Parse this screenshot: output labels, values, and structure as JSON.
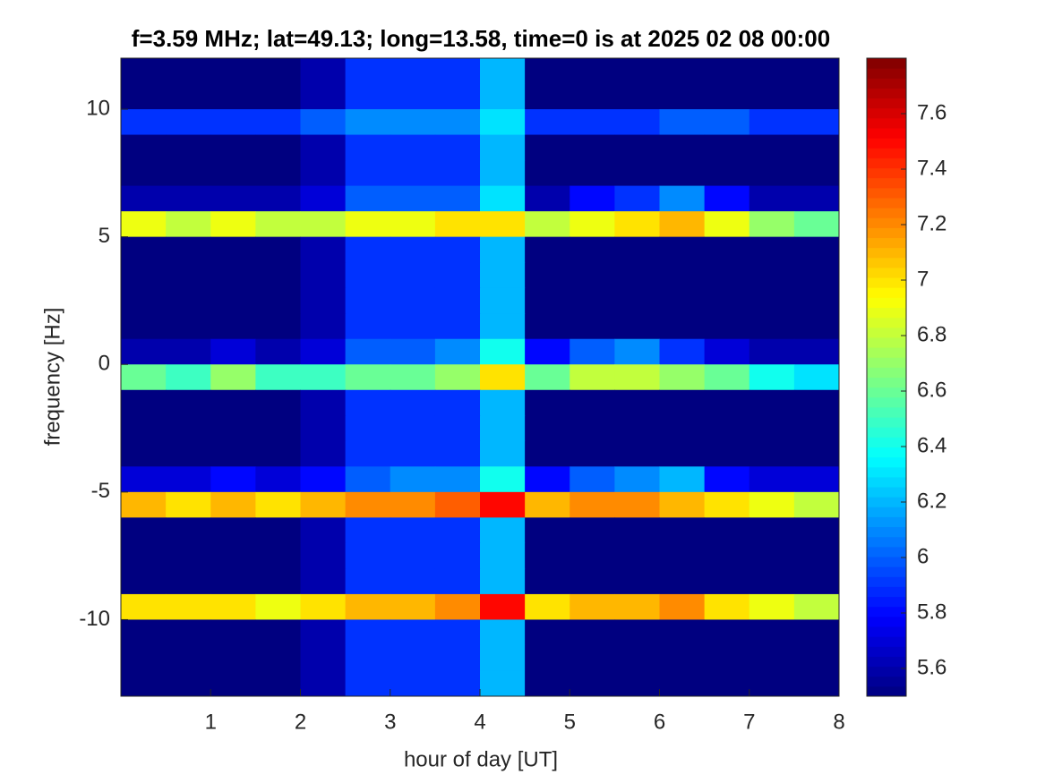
{
  "chart_data": {
    "type": "heatmap",
    "title": "f=3.59 MHz;  lat=49.13; long=13.58, time=0 is at 2025 02 08 00:00",
    "xlabel": "hour of day [UT]",
    "ylabel": "frequency [Hz]",
    "colormap": "jet",
    "x": [
      0.25,
      0.75,
      1.25,
      1.75,
      2.25,
      2.75,
      3.25,
      3.75,
      4.25,
      4.75,
      5.25,
      5.75,
      6.25,
      6.75,
      7.25,
      7.75
    ],
    "y": [
      11.5,
      10.5,
      9.5,
      8.5,
      7.5,
      6.5,
      5.5,
      4.5,
      3.5,
      2.5,
      1.5,
      0.5,
      -0.5,
      -1.5,
      -2.5,
      -3.5,
      -4.5,
      -5.5,
      -6.5,
      -7.5,
      -8.5,
      -9.5,
      -10.5,
      -11.5,
      -12.5
    ],
    "z": [
      [
        5.5,
        5.5,
        5.5,
        5.5,
        5.6,
        5.9,
        5.9,
        5.9,
        6.2,
        5.5,
        5.5,
        5.5,
        5.5,
        5.5,
        5.5,
        5.5
      ],
      [
        5.5,
        5.5,
        5.5,
        5.5,
        5.6,
        5.9,
        5.9,
        5.9,
        6.2,
        5.5,
        5.5,
        5.5,
        5.5,
        5.5,
        5.5,
        5.5
      ],
      [
        5.9,
        5.9,
        5.9,
        5.9,
        6.0,
        6.1,
        6.1,
        6.1,
        6.3,
        5.9,
        5.9,
        5.9,
        6.0,
        6.0,
        5.9,
        5.9
      ],
      [
        5.5,
        5.5,
        5.5,
        5.5,
        5.6,
        5.9,
        5.9,
        5.9,
        6.2,
        5.5,
        5.5,
        5.5,
        5.5,
        5.5,
        5.5,
        5.5
      ],
      [
        5.5,
        5.5,
        5.5,
        5.5,
        5.6,
        5.9,
        5.9,
        5.9,
        6.2,
        5.5,
        5.5,
        5.5,
        5.5,
        5.5,
        5.5,
        5.5
      ],
      [
        5.6,
        5.6,
        5.6,
        5.6,
        5.7,
        6.0,
        6.0,
        6.0,
        6.3,
        5.6,
        5.8,
        5.9,
        6.1,
        5.8,
        5.6,
        5.6
      ],
      [
        6.9,
        6.8,
        6.9,
        6.8,
        6.8,
        6.9,
        6.9,
        7.0,
        7.0,
        6.8,
        6.9,
        7.0,
        7.1,
        6.9,
        6.7,
        6.6
      ],
      [
        5.5,
        5.5,
        5.5,
        5.5,
        5.6,
        5.9,
        5.9,
        5.9,
        6.2,
        5.5,
        5.5,
        5.5,
        5.5,
        5.5,
        5.5,
        5.5
      ],
      [
        5.5,
        5.5,
        5.5,
        5.5,
        5.6,
        5.9,
        5.9,
        5.9,
        6.2,
        5.5,
        5.5,
        5.5,
        5.5,
        5.5,
        5.5,
        5.5
      ],
      [
        5.5,
        5.5,
        5.5,
        5.5,
        5.6,
        5.9,
        5.9,
        5.9,
        6.2,
        5.5,
        5.5,
        5.5,
        5.5,
        5.5,
        5.5,
        5.5
      ],
      [
        5.5,
        5.5,
        5.5,
        5.5,
        5.6,
        5.9,
        5.9,
        5.9,
        6.2,
        5.5,
        5.5,
        5.5,
        5.5,
        5.5,
        5.5,
        5.5
      ],
      [
        5.6,
        5.6,
        5.7,
        5.6,
        5.7,
        6.0,
        6.0,
        6.1,
        6.4,
        5.8,
        6.0,
        6.1,
        5.9,
        5.7,
        5.6,
        5.6
      ],
      [
        6.6,
        6.5,
        6.7,
        6.5,
        6.5,
        6.6,
        6.6,
        6.7,
        7.0,
        6.6,
        6.8,
        6.8,
        6.7,
        6.6,
        6.4,
        6.3
      ],
      [
        5.5,
        5.5,
        5.5,
        5.5,
        5.6,
        5.9,
        5.9,
        5.9,
        6.2,
        5.5,
        5.5,
        5.5,
        5.5,
        5.5,
        5.5,
        5.5
      ],
      [
        5.5,
        5.5,
        5.5,
        5.5,
        5.6,
        5.9,
        5.9,
        5.9,
        6.2,
        5.5,
        5.5,
        5.5,
        5.5,
        5.5,
        5.5,
        5.5
      ],
      [
        5.5,
        5.5,
        5.5,
        5.5,
        5.6,
        5.9,
        5.9,
        5.9,
        6.2,
        5.5,
        5.5,
        5.5,
        5.5,
        5.5,
        5.5,
        5.5
      ],
      [
        5.7,
        5.7,
        5.8,
        5.7,
        5.8,
        6.0,
        6.1,
        6.1,
        6.4,
        5.8,
        6.0,
        6.1,
        6.2,
        5.8,
        5.7,
        5.7
      ],
      [
        7.1,
        7.0,
        7.1,
        7.0,
        7.1,
        7.2,
        7.2,
        7.3,
        7.5,
        7.1,
        7.2,
        7.2,
        7.1,
        7.0,
        6.9,
        6.8
      ],
      [
        5.5,
        5.5,
        5.5,
        5.5,
        5.6,
        5.9,
        5.9,
        5.9,
        6.2,
        5.5,
        5.5,
        5.5,
        5.5,
        5.5,
        5.5,
        5.5
      ],
      [
        5.5,
        5.5,
        5.5,
        5.5,
        5.6,
        5.9,
        5.9,
        5.9,
        6.2,
        5.5,
        5.5,
        5.5,
        5.5,
        5.5,
        5.5,
        5.5
      ],
      [
        5.5,
        5.5,
        5.5,
        5.5,
        5.6,
        5.9,
        5.9,
        5.9,
        6.2,
        5.5,
        5.5,
        5.5,
        5.5,
        5.5,
        5.5,
        5.5
      ],
      [
        7.0,
        7.0,
        7.0,
        6.9,
        7.0,
        7.1,
        7.1,
        7.2,
        7.5,
        7.0,
        7.1,
        7.1,
        7.2,
        7.0,
        6.9,
        6.8
      ],
      [
        5.5,
        5.5,
        5.5,
        5.5,
        5.6,
        5.9,
        5.9,
        5.9,
        6.2,
        5.5,
        5.5,
        5.5,
        5.5,
        5.5,
        5.5,
        5.5
      ],
      [
        5.5,
        5.5,
        5.5,
        5.5,
        5.6,
        5.9,
        5.9,
        5.9,
        6.2,
        5.5,
        5.5,
        5.5,
        5.5,
        5.5,
        5.5,
        5.5
      ],
      [
        5.5,
        5.5,
        5.5,
        5.5,
        5.6,
        5.9,
        5.9,
        5.9,
        6.2,
        5.5,
        5.5,
        5.5,
        5.5,
        5.5,
        5.5,
        5.5
      ]
    ],
    "xlim": [
      0,
      8
    ],
    "xticks": [
      1,
      2,
      3,
      4,
      5,
      6,
      7,
      8
    ],
    "ylim": [
      -13,
      12
    ],
    "yticks": [
      -10,
      -5,
      0,
      5,
      10
    ],
    "zlim": [
      5.5,
      7.8
    ],
    "zticks": [
      5.6,
      5.8,
      6,
      6.2,
      6.4,
      6.6,
      6.8,
      7,
      7.2,
      7.4,
      7.6
    ]
  }
}
